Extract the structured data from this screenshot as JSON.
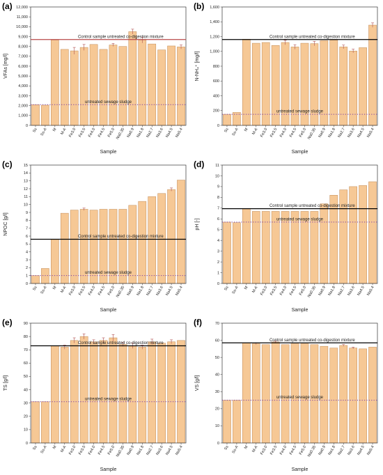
{
  "categories": [
    "Ss",
    "Ss-A",
    "M",
    "M-A",
    "Fe3.0",
    "Fe3.5",
    "Fe4.0",
    "Fe4.5",
    "Fe5.0",
    "Na0.35",
    "Na0.9",
    "Na1.8",
    "Na2.7",
    "Na3.6",
    "Na4.5",
    "Na5.4"
  ],
  "colors": {
    "bar_fill": "#f6c895",
    "bar_stroke": "#c08a55",
    "control_line": "#000000",
    "sewage_line": "#7a3aa8",
    "errbar": "#b05050"
  },
  "panels": [
    {
      "label": "(a)",
      "ylabel": "VFAs [mg/l]",
      "xlabel": "Sample",
      "ticks": [
        0,
        1000,
        2000,
        3000,
        4000,
        5000,
        6000,
        7000,
        8000,
        9000,
        10000,
        11000,
        12000
      ],
      "tick_labels": [
        "0",
        "1,000",
        "2,000",
        "3,000",
        "4,000",
        "5,000",
        "6,000",
        "7,000",
        "8,000",
        "9,000",
        "10,000",
        "11,000",
        "12,000"
      ],
      "ylim": [
        0,
        12000
      ],
      "values": [
        2100,
        2050,
        8650,
        7700,
        7550,
        7900,
        8200,
        7700,
        8150,
        8000,
        9500,
        8650,
        8250,
        7650,
        8050,
        7950
      ],
      "errors": [
        0,
        0,
        0,
        0,
        350,
        300,
        0,
        0,
        150,
        0,
        250,
        300,
        0,
        0,
        0,
        200
      ],
      "control_y": 8700,
      "control_label": "Control sample untreated co-digestion mixture",
      "control_color": "#b84a4a",
      "sewage_y": 2100,
      "sewage_label": "untreated sewage sludge"
    },
    {
      "label": "(b)",
      "ylabel": "N-NH₄⁺ [mg/l]",
      "xlabel": "Sample",
      "ticks": [
        0,
        200,
        400,
        600,
        800,
        1000,
        1200,
        1400,
        1600
      ],
      "tick_labels": [
        "0",
        "200",
        "400",
        "600",
        "800",
        "1,000",
        "1,200",
        "1,400",
        "1,600"
      ],
      "ylim": [
        0,
        1600
      ],
      "values": [
        150,
        175,
        1165,
        1110,
        1120,
        1080,
        1120,
        1060,
        1110,
        1105,
        1145,
        1150,
        1060,
        1005,
        1050,
        1355
      ],
      "errors": [
        0,
        0,
        0,
        0,
        0,
        0,
        30,
        30,
        0,
        30,
        0,
        0,
        25,
        25,
        0,
        30
      ],
      "control_y": 1160,
      "control_label": "Control sample untreated co-digestion mixture",
      "control_color": "#000000",
      "sewage_y": 150,
      "sewage_label": "untreated sewage sludge"
    },
    {
      "label": "(c)",
      "ylabel": "NPOC [g/l]",
      "xlabel": "Sample",
      "ticks": [
        0,
        1,
        2,
        3,
        4,
        5,
        6,
        7,
        8,
        9,
        10,
        11,
        12,
        13,
        14,
        15
      ],
      "tick_labels": [
        "0",
        "1",
        "2",
        "3",
        "4",
        "5",
        "6",
        "7",
        "8",
        "9",
        "10",
        "11",
        "12",
        "13",
        "14",
        "15"
      ],
      "ylim": [
        0,
        15
      ],
      "values": [
        1.0,
        1.9,
        5.6,
        8.9,
        9.3,
        9.4,
        9.3,
        9.4,
        9.4,
        9.4,
        9.9,
        10.4,
        11.0,
        11.4,
        11.9,
        13.1
      ],
      "errors": [
        0,
        0,
        0,
        0,
        0,
        0.15,
        0,
        0,
        0,
        0,
        0,
        0,
        0,
        0,
        0.2,
        0
      ],
      "control_y": 5.6,
      "control_label": "Control sample untreated co-digestion mixture",
      "control_color": "#000000",
      "sewage_y": 1.0,
      "sewage_label": "untreated sewage sludge"
    },
    {
      "label": "(d)",
      "ylabel": "pH [-]",
      "xlabel": "Sample",
      "ticks": [
        0,
        1,
        2,
        3,
        4,
        5,
        6,
        7,
        8,
        9,
        10,
        11
      ],
      "tick_labels": [
        "0",
        "1",
        "2",
        "3",
        "4",
        "5",
        "6",
        "7",
        "8",
        "9",
        "10",
        "11"
      ],
      "ylim": [
        0,
        11
      ],
      "values": [
        5.7,
        5.65,
        6.95,
        6.7,
        6.7,
        6.7,
        6.7,
        6.7,
        6.7,
        6.7,
        7.4,
        8.2,
        8.7,
        9.0,
        9.1,
        9.45
      ],
      "errors": [
        0,
        0,
        0,
        0,
        0,
        0,
        0,
        0,
        0,
        0,
        0,
        0,
        0,
        0,
        0,
        0
      ],
      "control_y": 6.95,
      "control_label": "Control sample untreated co-digestion mixture",
      "control_color": "#000000",
      "sewage_y": 5.7,
      "sewage_label": "untreated sewage sludge"
    },
    {
      "label": "(e)",
      "ylabel": "TS [g/l]",
      "xlabel": "Sample",
      "ticks": [
        0,
        10,
        20,
        30,
        40,
        50,
        60,
        70,
        80,
        90
      ],
      "tick_labels": [
        "0",
        "10",
        "20",
        "30",
        "40",
        "50",
        "60",
        "70",
        "80",
        "90"
      ],
      "ylim": [
        0,
        90
      ],
      "values": [
        31,
        31,
        73,
        72,
        77,
        80,
        76,
        77,
        79,
        74,
        73,
        72,
        76,
        75,
        76,
        77
      ],
      "errors": [
        0,
        0,
        0,
        1.5,
        2,
        2,
        1.5,
        2,
        2.5,
        1.5,
        2,
        1.5,
        2,
        0,
        1.5,
        0
      ],
      "control_y": 73,
      "control_label": "Control sample untreated co-digestion mixture",
      "control_color": "#000000",
      "sewage_y": 31,
      "sewage_label": "untreated sewage sludge"
    },
    {
      "label": "(f)",
      "ylabel": "VS [g/l]",
      "xlabel": "Sample",
      "ticks": [
        0,
        10,
        20,
        30,
        40,
        50,
        60,
        70
      ],
      "tick_labels": [
        "0",
        "10",
        "20",
        "30",
        "40",
        "50",
        "60",
        "70"
      ],
      "ylim": [
        0,
        70
      ],
      "values": [
        25,
        25,
        58.5,
        58,
        57.5,
        59,
        57.5,
        58,
        58,
        57.5,
        56.5,
        55.5,
        57,
        55.5,
        55,
        56
      ],
      "errors": [
        0,
        0,
        0,
        0.5,
        0,
        0.5,
        0,
        0,
        0,
        0,
        0,
        0,
        0.5,
        0.5,
        0,
        0
      ],
      "control_y": 58.5,
      "control_label": "Control sample untreated co-digestion mixture",
      "control_color": "#000000",
      "sewage_y": 25,
      "sewage_label": "untreated sewage sludge"
    }
  ]
}
